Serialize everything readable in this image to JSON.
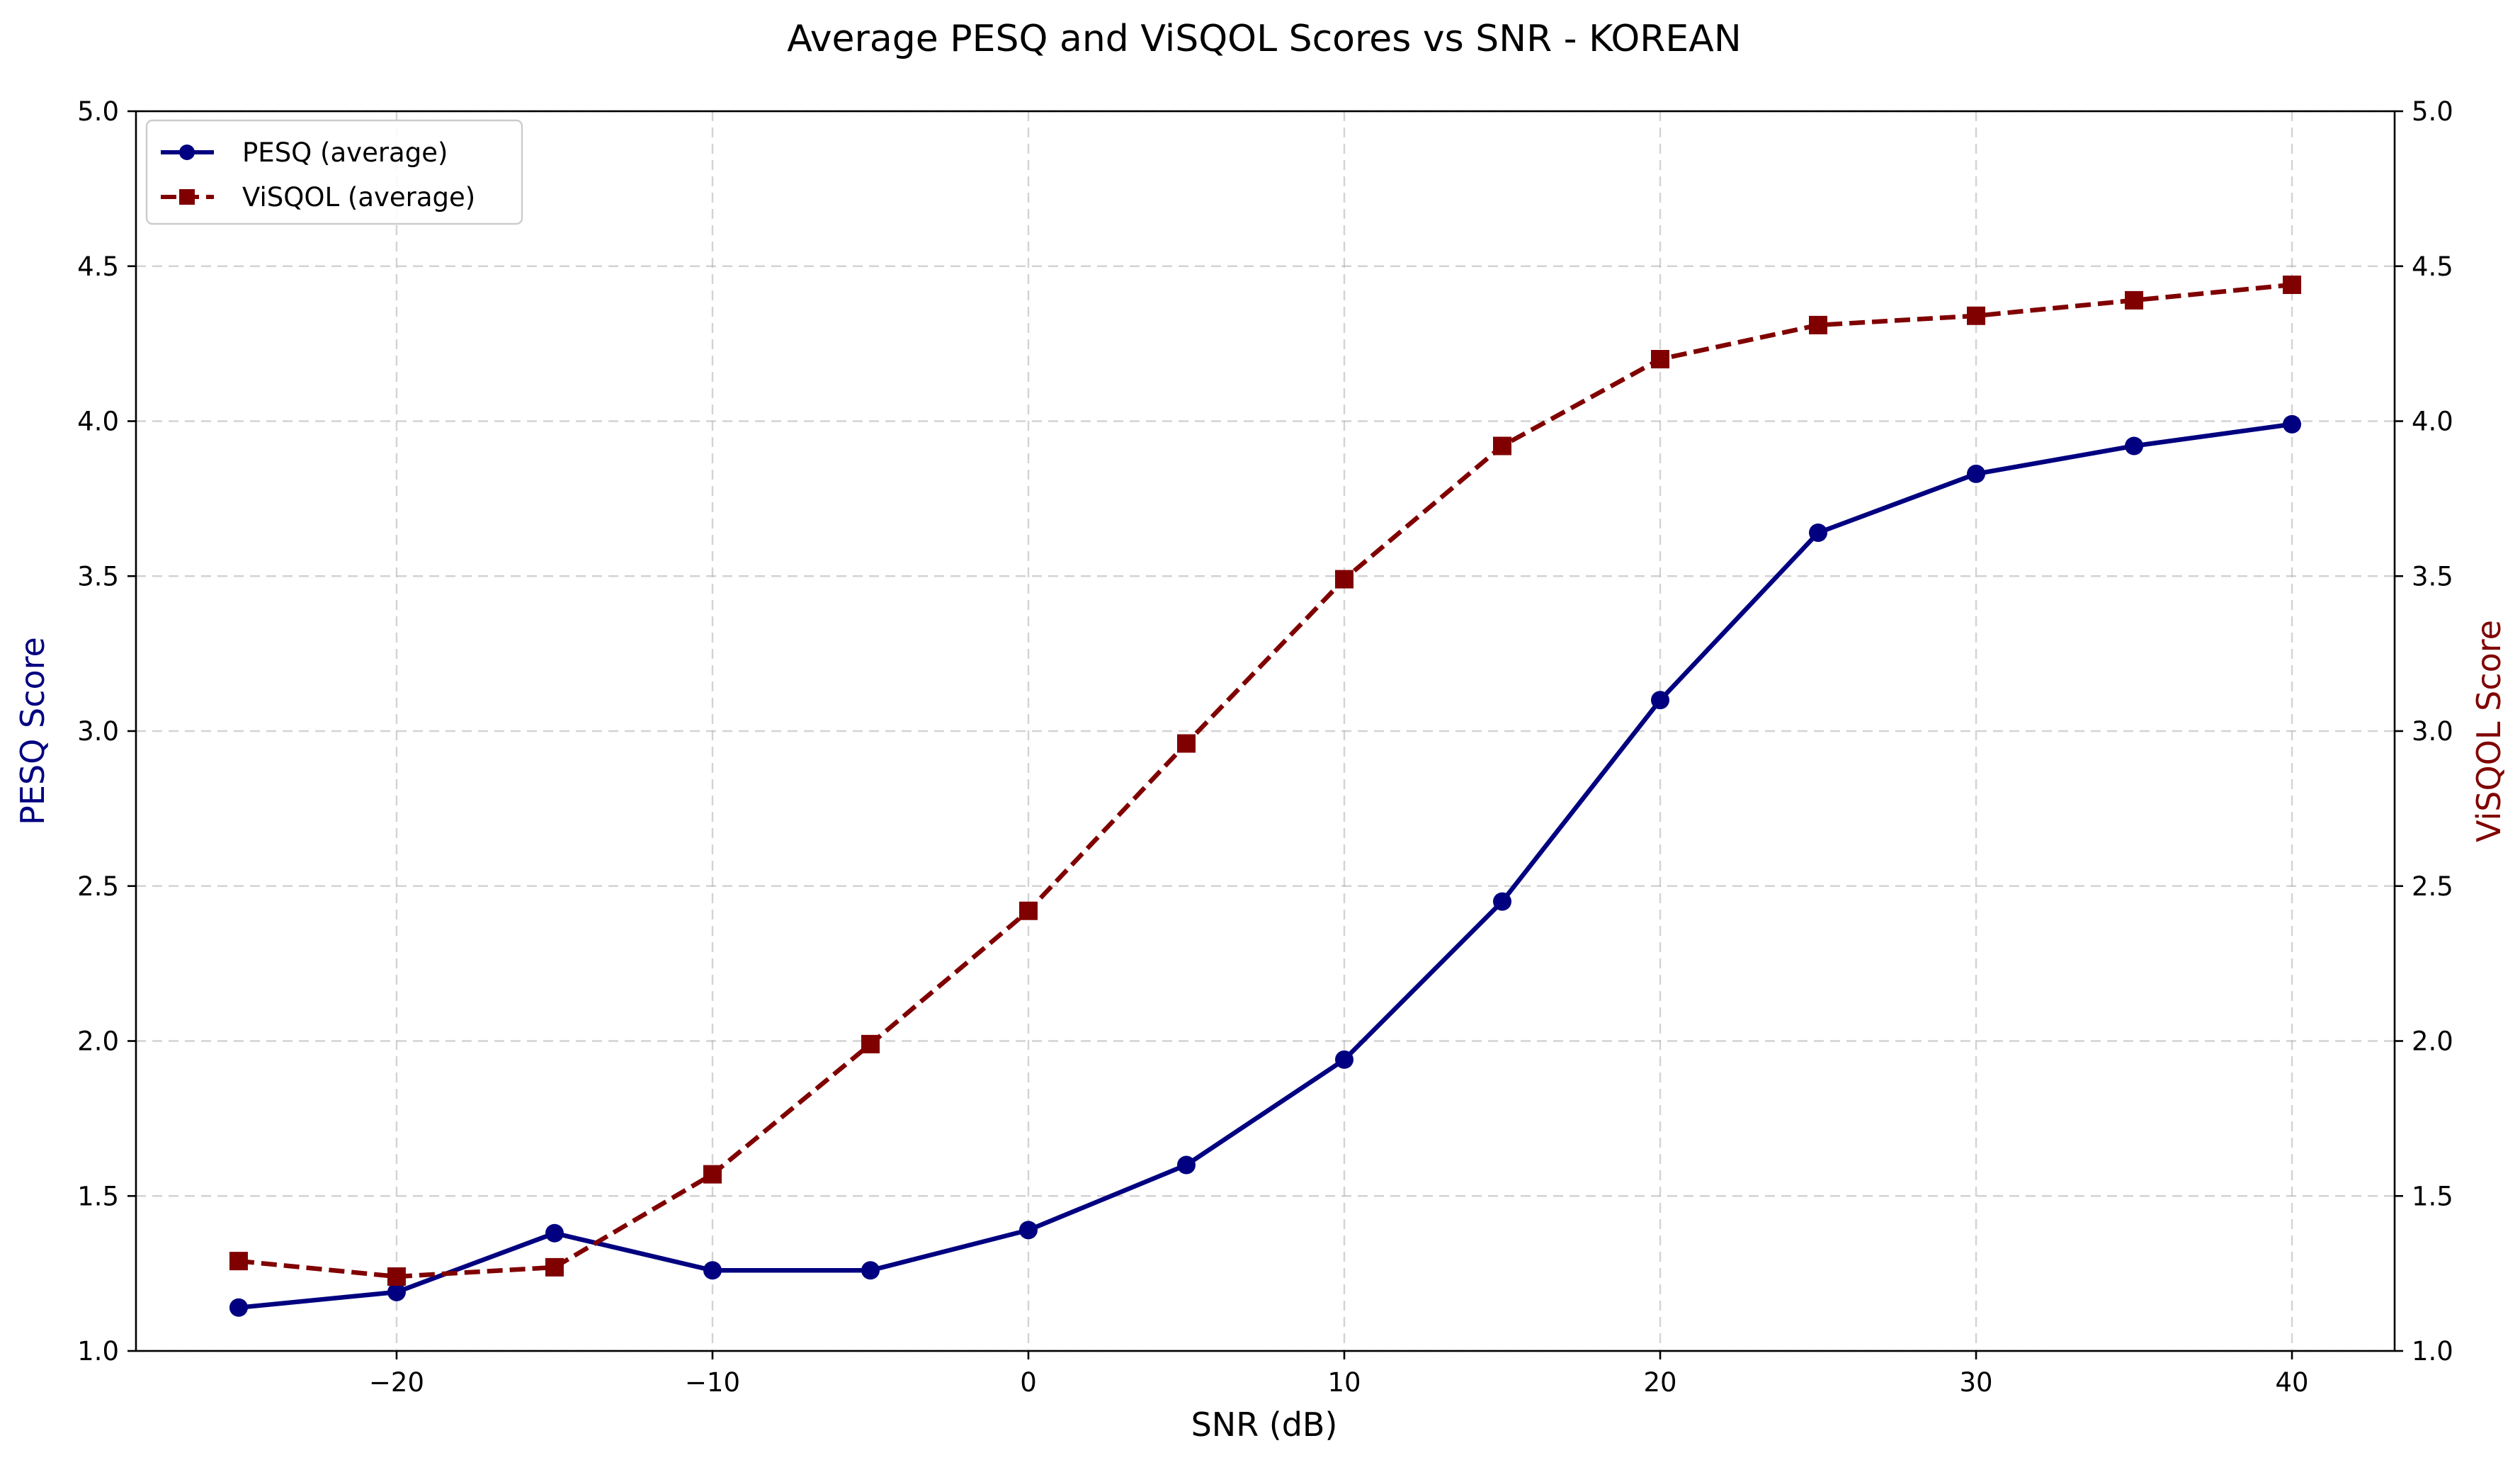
{
  "chart_data": {
    "type": "line",
    "title": "Average PESQ and ViSQOL Scores vs SNR - KOREAN",
    "xlabel": "SNR (dB)",
    "ylabel_left": "PESQ Score",
    "ylabel_right": "ViSQOL Score",
    "xlim": [
      -28.25,
      43.25
    ],
    "ylim_left": [
      1.0,
      5.0
    ],
    "ylim_right": [
      1.0,
      5.0
    ],
    "x_ticks": [
      -20,
      -10,
      0,
      10,
      20,
      30,
      40
    ],
    "x_tick_labels": [
      "−20",
      "−10",
      "0",
      "10",
      "20",
      "30",
      "40"
    ],
    "y_ticks": [
      1.0,
      1.5,
      2.0,
      2.5,
      3.0,
      3.5,
      4.0,
      4.5,
      5.0
    ],
    "y_tick_labels": [
      "1.0",
      "1.5",
      "2.0",
      "2.5",
      "3.0",
      "3.5",
      "4.0",
      "4.5",
      "5.0"
    ],
    "grid": true,
    "legend_position": "top-left",
    "x": [
      -25,
      -20,
      -15,
      -10,
      -5,
      0,
      5,
      10,
      15,
      20,
      25,
      30,
      35,
      40
    ],
    "series": [
      {
        "name": "PESQ (average)",
        "axis": "left",
        "color": "#000080",
        "marker": "circle",
        "line_style": "solid",
        "values": [
          1.14,
          1.19,
          1.38,
          1.26,
          1.26,
          1.39,
          1.6,
          1.94,
          2.45,
          3.1,
          3.64,
          3.83,
          3.92,
          3.99
        ]
      },
      {
        "name": "ViSQOL (average)",
        "axis": "right",
        "color": "#800000",
        "marker": "square",
        "line_style": "dashed",
        "values": [
          1.29,
          1.24,
          1.27,
          1.57,
          1.99,
          2.42,
          2.96,
          3.49,
          3.92,
          4.2,
          4.31,
          4.34,
          4.39,
          4.44
        ]
      }
    ]
  }
}
